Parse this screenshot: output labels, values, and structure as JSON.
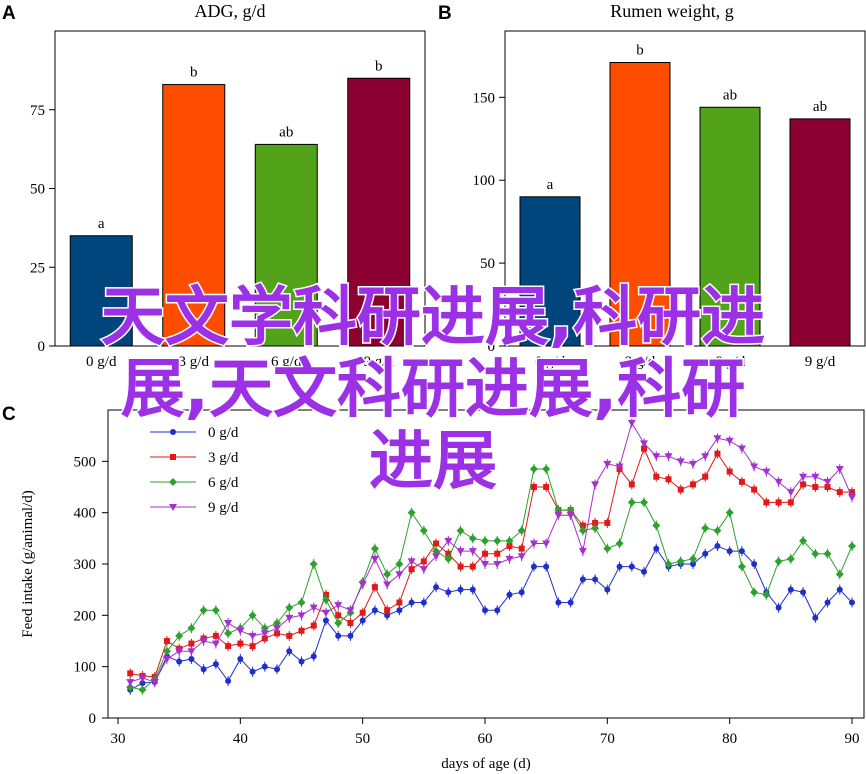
{
  "watermark": {
    "line1": "天文学科研进展,科研进",
    "line2": "展,天文科研进展,科研",
    "line3": "进展"
  },
  "chart_data": [
    {
      "panel": "A",
      "type": "bar",
      "title": "ADG, g/d",
      "categories": [
        "0 g/d",
        "3 g/d",
        "6 g/d",
        "9 g/d"
      ],
      "values": [
        35,
        83,
        64,
        85
      ],
      "letters": [
        "a",
        "b",
        "ab",
        "b"
      ],
      "colors": [
        "#00457c",
        "#ff4d00",
        "#52a319",
        "#8c0032"
      ],
      "ylim": [
        0,
        100
      ],
      "yticks": [
        0,
        25,
        50,
        75
      ],
      "ytick_labels": [
        "0",
        "25",
        "50",
        "75"
      ]
    },
    {
      "panel": "B",
      "type": "bar",
      "title": "Rumen weight, g",
      "categories": [
        "0 g/d",
        "3 g/d",
        "6 g/d",
        "9 g/d"
      ],
      "values": [
        90,
        171,
        144,
        137
      ],
      "letters": [
        "a",
        "b",
        "ab",
        "ab"
      ],
      "colors": [
        "#00457c",
        "#ff4d00",
        "#52a319",
        "#8c0032"
      ],
      "ylim": [
        0,
        190
      ],
      "yticks": [
        0,
        50,
        100,
        150
      ],
      "ytick_labels": [
        "0",
        "50",
        "100",
        "150"
      ]
    },
    {
      "panel": "C",
      "type": "line",
      "xlabel": "days of age (d)",
      "ylabel": "Feed intake (g/animal/d)",
      "xlim": [
        30,
        90
      ],
      "ylim": [
        0,
        600
      ],
      "xticks": [
        30,
        40,
        50,
        60,
        70,
        80,
        90
      ],
      "yticks": [
        0,
        100,
        200,
        300,
        400,
        500
      ],
      "legend_position": "top-left",
      "x": [
        31,
        32,
        33,
        34,
        35,
        36,
        37,
        38,
        39,
        40,
        41,
        42,
        43,
        44,
        45,
        46,
        47,
        48,
        49,
        50,
        51,
        52,
        53,
        54,
        55,
        56,
        57,
        58,
        59,
        60,
        61,
        62,
        63,
        64,
        65,
        66,
        67,
        68,
        69,
        70,
        71,
        72,
        73,
        74,
        75,
        76,
        77,
        78,
        79,
        80,
        81,
        82,
        83,
        84,
        85,
        86,
        87,
        88,
        89,
        90
      ],
      "series": [
        {
          "name": "0 g/d",
          "color": "#1f2fcc",
          "marker": "circle",
          "values": [
            55,
            68,
            70,
            120,
            110,
            115,
            95,
            105,
            72,
            115,
            90,
            100,
            95,
            130,
            110,
            120,
            190,
            160,
            160,
            190,
            210,
            200,
            210,
            225,
            225,
            255,
            245,
            250,
            250,
            210,
            210,
            240,
            245,
            295,
            295,
            225,
            225,
            270,
            270,
            250,
            295,
            295,
            285,
            330,
            295,
            300,
            300,
            320,
            335,
            325,
            325,
            300,
            245,
            215,
            250,
            245,
            195,
            225,
            250,
            225
          ]
        },
        {
          "name": "3 g/d",
          "color": "#e01a1a",
          "marker": "square",
          "values": [
            87,
            82,
            80,
            150,
            135,
            145,
            155,
            160,
            140,
            145,
            140,
            155,
            165,
            160,
            170,
            180,
            240,
            200,
            185,
            205,
            255,
            210,
            225,
            290,
            305,
            340,
            320,
            295,
            295,
            320,
            320,
            335,
            330,
            450,
            450,
            405,
            405,
            375,
            380,
            380,
            485,
            455,
            525,
            470,
            465,
            445,
            455,
            470,
            515,
            480,
            460,
            445,
            420,
            420,
            420,
            455,
            450,
            450,
            440,
            440
          ]
        },
        {
          "name": "6 g/d",
          "color": "#2da12d",
          "marker": "diamond",
          "values": [
            60,
            55,
            75,
            130,
            160,
            175,
            210,
            210,
            165,
            175,
            200,
            175,
            185,
            215,
            225,
            300,
            230,
            185,
            205,
            265,
            330,
            280,
            300,
            400,
            365,
            325,
            310,
            365,
            350,
            345,
            345,
            345,
            365,
            485,
            485,
            405,
            405,
            365,
            370,
            330,
            340,
            420,
            420,
            375,
            300,
            305,
            310,
            370,
            365,
            400,
            295,
            245,
            240,
            305,
            310,
            345,
            320,
            320,
            280,
            335
          ]
        },
        {
          "name": "9 g/d",
          "color": "#a62fcf",
          "marker": "triangle",
          "values": [
            70,
            78,
            70,
            115,
            130,
            130,
            150,
            145,
            185,
            170,
            160,
            165,
            175,
            195,
            200,
            215,
            205,
            220,
            210,
            260,
            310,
            260,
            280,
            305,
            290,
            315,
            345,
            325,
            325,
            300,
            300,
            310,
            315,
            340,
            340,
            395,
            395,
            325,
            455,
            495,
            490,
            575,
            535,
            510,
            510,
            500,
            495,
            510,
            545,
            540,
            525,
            490,
            480,
            460,
            440,
            470,
            470,
            460,
            485,
            430
          ]
        }
      ]
    }
  ]
}
